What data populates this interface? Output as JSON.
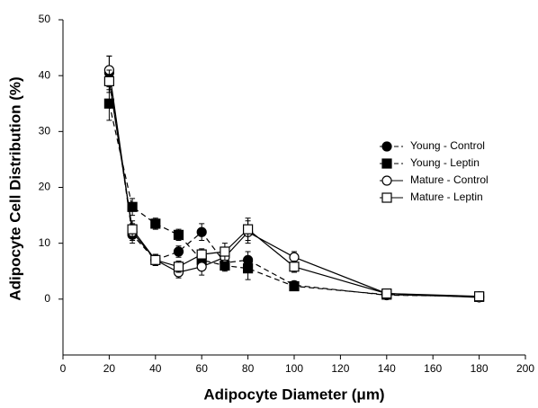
{
  "chart_data": {
    "type": "line",
    "xlabel": "Adipocyte Diameter (μm)",
    "ylabel": "Adipocyte Cell Distribution (%)",
    "x": [
      20,
      30,
      40,
      50,
      60,
      70,
      80,
      100,
      140,
      180
    ],
    "xlim": [
      0,
      200
    ],
    "xticks": [
      0,
      20,
      40,
      60,
      80,
      100,
      120,
      140,
      160,
      180,
      200
    ],
    "ylim": [
      -10,
      50
    ],
    "yticks": [
      0,
      10,
      20,
      30,
      40,
      50
    ],
    "legend": "upper right",
    "series": [
      {
        "name": "Young - Control",
        "color": "#000000",
        "marker": "circle",
        "filled": true,
        "dashed": true,
        "values": [
          40.5,
          11.5,
          7,
          8.5,
          12,
          6.5,
          7,
          2.5,
          0.7,
          0.5
        ],
        "errors": [
          3,
          1.5,
          1,
          1,
          1.5,
          1,
          1.5,
          0.7,
          0.3,
          0.3
        ]
      },
      {
        "name": "Young - Leptin",
        "color": "#000000",
        "marker": "square",
        "filled": true,
        "dashed": true,
        "values": [
          35,
          16.5,
          13.5,
          11.5,
          7,
          6,
          5.5,
          2.3,
          0.8,
          0.4
        ],
        "errors": [
          3,
          1.5,
          1,
          1,
          1,
          1,
          2,
          0.5,
          0.3,
          0.3
        ]
      },
      {
        "name": "Mature - Control",
        "color": "#000000",
        "marker": "circle",
        "filled": false,
        "dashed": false,
        "values": [
          41,
          12,
          7,
          4.8,
          5.8,
          7.5,
          12,
          7.5,
          1,
          0.3
        ],
        "errors": [
          2.5,
          1.5,
          1,
          1,
          1.5,
          1.5,
          2,
          1,
          0.3,
          0.3
        ]
      },
      {
        "name": "Mature - Leptin",
        "color": "#000000",
        "marker": "square",
        "filled": false,
        "dashed": false,
        "values": [
          39,
          12.5,
          7,
          5.8,
          8,
          8.5,
          12.5,
          5.8,
          1,
          0.5
        ],
        "errors": [
          2,
          1.5,
          1,
          1,
          1,
          1.5,
          2,
          1,
          0.3,
          0.3
        ]
      }
    ]
  }
}
